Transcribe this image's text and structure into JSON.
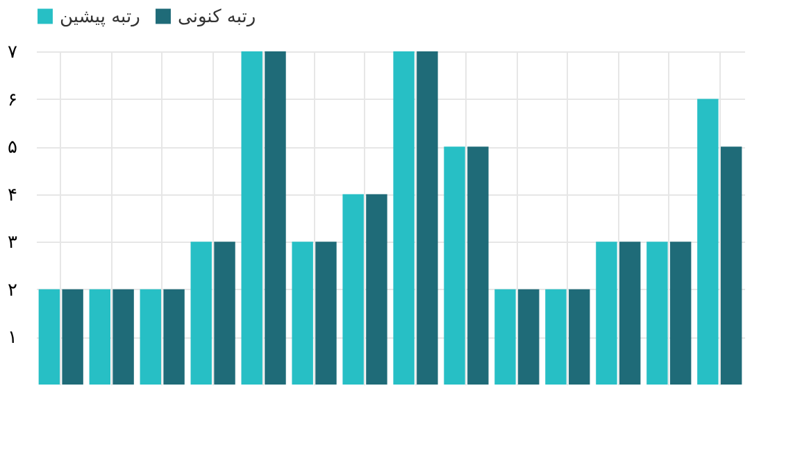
{
  "chart_data": {
    "type": "bar",
    "categories": [
      null,
      null,
      null,
      null,
      null,
      null,
      null,
      null,
      null,
      null,
      null,
      null,
      null,
      null
    ],
    "series": [
      {
        "name": "رتبه پیشین",
        "color": "#27bfc5",
        "values": [
          2,
          2,
          2,
          3,
          7,
          3,
          4,
          7,
          5,
          2,
          2,
          3,
          3,
          6
        ]
      },
      {
        "name": "رتبه کنونی",
        "color": "#1f6b78",
        "values": [
          2,
          2,
          2,
          3,
          7,
          3,
          4,
          7,
          5,
          2,
          2,
          3,
          3,
          5
        ]
      }
    ],
    "ylim": [
      0,
      7
    ],
    "yticks": [
      {
        "value": 1,
        "label": "۱"
      },
      {
        "value": 2,
        "label": "۲"
      },
      {
        "value": 3,
        "label": "۳"
      },
      {
        "value": 4,
        "label": "۴"
      },
      {
        "value": 5,
        "label": "۵"
      },
      {
        "value": 6,
        "label": "۶"
      },
      {
        "value": 7,
        "label": "۷"
      }
    ],
    "grid": true,
    "legend": "top"
  }
}
